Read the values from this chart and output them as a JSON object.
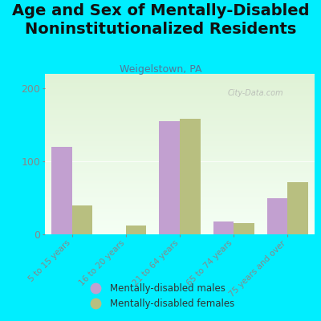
{
  "title": "Age and Sex of Mentally-Disabled\nNoninstitutionalized Residents",
  "subtitle": "Weigelstown, PA",
  "categories": [
    "5 to 15 years",
    "16 to 20 years",
    "21 to 64 years",
    "65 to 74 years",
    "75 years and over"
  ],
  "males": [
    120,
    0,
    155,
    18,
    50
  ],
  "females": [
    40,
    12,
    158,
    15,
    72
  ],
  "male_color": "#c2a0d0",
  "female_color": "#b8bf80",
  "ylim": [
    0,
    220
  ],
  "yticks": [
    0,
    100,
    200
  ],
  "background_color": "#00eeff",
  "title_fontsize": 14,
  "subtitle_fontsize": 9,
  "legend_label_males": "Mentally-disabled males",
  "legend_label_females": "Mentally-disabled females",
  "watermark": "City-Data.com",
  "bar_width": 0.38
}
